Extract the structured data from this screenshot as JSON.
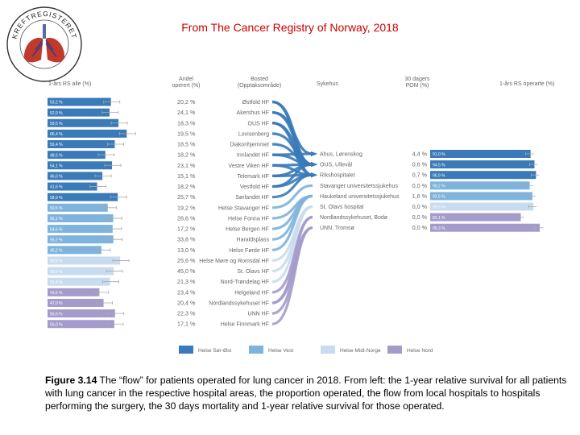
{
  "title": "From The Cancer Registry of Norway, 2018",
  "logo": {
    "text": "KREFTREGISTERET",
    "icon": "lungs-seal-icon"
  },
  "caption": {
    "label": "Figure 3.14",
    "text": "The “flow” for patients operated for lung cancer in 2018. From left: the 1-year relative survival for all patients with lung cancer in the respective hospital areas, the proportion operated, the flow from local hospitals to hospitals performing the surgery, the 30 days mortality and 1-year relative survival for those operated."
  },
  "colors": {
    "Helse Sør-Øst": "#3a7ab8",
    "Helse Vest": "#7db3dc",
    "Helse Midt-Norge": "#c9dcef",
    "Helse Nord": "#a49bcb"
  },
  "chart_data": {
    "type": "flow",
    "headers": {
      "survival_all": "1-års RS alle (%)",
      "andel": "Andel\noperert (%)",
      "bosted": "Bosted\n(Opptaksområde)",
      "sykehus": "Sykehus",
      "pom": "30 dagers\nPOM (%)",
      "survival_operated": "1-års RS operarte (%)"
    },
    "survival_axis": [
      0,
      100
    ],
    "areas": [
      {
        "name": "Østfold HF",
        "rs": 53.2,
        "rs_label": "53,2 %",
        "andel": "20,2 %",
        "region": "Helse Sør-Øst",
        "to": [
          1,
          2
        ]
      },
      {
        "name": "Akershus HF",
        "rs": 52.0,
        "rs_label": "52,0 %",
        "andel": "24,1 %",
        "region": "Helse Sør-Øst",
        "to": [
          0,
          1
        ]
      },
      {
        "name": "OUS HF",
        "rs": 59.5,
        "rs_label": "59,5 %",
        "andel": "18,3 %",
        "region": "Helse Sør-Øst",
        "to": [
          1,
          2
        ]
      },
      {
        "name": "Lovisenberg",
        "rs": 66.4,
        "rs_label": "66,4 %",
        "andel": "19,5 %",
        "region": "Helse Sør-Øst",
        "to": [
          1
        ]
      },
      {
        "name": "Diakonhjemmet",
        "rs": 56.4,
        "rs_label": "56,4 %",
        "andel": "18,5 %",
        "region": "Helse Sør-Øst",
        "to": [
          1
        ]
      },
      {
        "name": "Innlandet HF",
        "rs": 48.5,
        "rs_label": "48,5 %",
        "andel": "18,2 %",
        "region": "Helse Sør-Øst",
        "to": [
          0,
          1
        ]
      },
      {
        "name": "Vestre Viken HF",
        "rs": 54.1,
        "rs_label": "54,1 %",
        "andel": "23,1 %",
        "region": "Helse Sør-Øst",
        "to": [
          1,
          2
        ]
      },
      {
        "name": "Telemark HF",
        "rs": 46.0,
        "rs_label": "46,0 %",
        "andel": "15,1 %",
        "region": "Helse Sør-Øst",
        "to": [
          1,
          2
        ]
      },
      {
        "name": "Vestfold HF",
        "rs": 41.6,
        "rs_label": "41,6 %",
        "andel": "18,2 %",
        "region": "Helse Sør-Øst",
        "to": [
          1,
          2
        ]
      },
      {
        "name": "Sørlandet HF",
        "rs": 58.9,
        "rs_label": "58,9 %",
        "andel": "25,7 %",
        "region": "Helse Sør-Øst",
        "to": [
          2
        ]
      },
      {
        "name": "Helse Stavanger HF",
        "rs": 50.5,
        "rs_label": "50,5 %",
        "andel": "19,2 %",
        "region": "Helse Vest",
        "to": [
          3
        ]
      },
      {
        "name": "Helse Fonna HF",
        "rs": 55.1,
        "rs_label": "55,1 %",
        "andel": "28,6 %",
        "region": "Helse Vest",
        "to": [
          4
        ]
      },
      {
        "name": "Helse Bergen HF",
        "rs": 54.6,
        "rs_label": "54,6 %",
        "andel": "17,2 %",
        "region": "Helse Vest",
        "to": [
          4
        ]
      },
      {
        "name": "Haraldsplass",
        "rs": 55.2,
        "rs_label": "55,2 %",
        "andel": "33,8 %",
        "region": "Helse Vest",
        "to": [
          4
        ]
      },
      {
        "name": "Helse Førde HF",
        "rs": 45.2,
        "rs_label": "45,2 %",
        "andel": "13,0 %",
        "region": "Helse Vest",
        "to": [
          4
        ]
      },
      {
        "name": "Helse Møre og Romsdal HF",
        "rs": 60.9,
        "rs_label": "60,9 %",
        "andel": "25,6 %",
        "region": "Helse Midt-Norge",
        "to": [
          5
        ]
      },
      {
        "name": "St. Olavs HF",
        "rs": 55.5,
        "rs_label": "55,5 %",
        "andel": "45,0 %",
        "region": "Helse Midt-Norge",
        "to": [
          5
        ]
      },
      {
        "name": "Nord-Trøndelag HF",
        "rs": 52.4,
        "rs_label": "52,4 %",
        "andel": "21,3 %",
        "region": "Helse Midt-Norge",
        "to": [
          5
        ]
      },
      {
        "name": "Helgeland HF",
        "rs": 43.5,
        "rs_label": "43,5 %",
        "andel": "23,4 %",
        "region": "Helse Nord",
        "to": [
          6
        ]
      },
      {
        "name": "Nordlandssykehuset HF",
        "rs": 47.0,
        "rs_label": "47,0 %",
        "andel": "20,4 %",
        "region": "Helse Nord",
        "to": [
          6,
          7
        ]
      },
      {
        "name": "UNN HF",
        "rs": 56.6,
        "rs_label": "56,6 %",
        "andel": "22,3 %",
        "region": "Helse Nord",
        "to": [
          7
        ]
      },
      {
        "name": "Helse Finnmark HF",
        "rs": 56.0,
        "rs_label": "56,0 %",
        "andel": "17,1 %",
        "region": "Helse Nord",
        "to": [
          7
        ]
      }
    ],
    "hospitals": [
      {
        "name": "Ahus, Lørenskog",
        "pom": "4,4 %",
        "rs": 91.0,
        "rs_label": "91,0 %",
        "region": "Helse Sør-Øst"
      },
      {
        "name": "OUS, Ullevål",
        "pom": "0,6 %",
        "rs": 94.5,
        "rs_label": "94,5 %",
        "region": "Helse Sør-Øst"
      },
      {
        "name": "Rikshospitalet",
        "pom": "0,7 %",
        "rs": 95.9,
        "rs_label": "95,9 %",
        "region": "Helse Sør-Øst"
      },
      {
        "name": "Stavanger universitetssjukehus",
        "pom": "0,0 %",
        "rs": 90.2,
        "rs_label": "90,2 %",
        "region": "Helse Vest"
      },
      {
        "name": "Haukeland universitetssjukehus",
        "pom": "1,6 %",
        "rs": 92.6,
        "rs_label": "92,6 %",
        "region": "Helse Vest"
      },
      {
        "name": "St. Olavs hospital",
        "pom": "0,0 %",
        "rs": 93.6,
        "rs_label": "93,6 %",
        "region": "Helse Midt-Norge"
      },
      {
        "name": "Nordlandssykehuset, Bodø",
        "pom": "0,0 %",
        "rs": 82.1,
        "rs_label": "82,1 %",
        "region": "Helse Nord"
      },
      {
        "name": "UNN, Tromsø",
        "pom": "0,0 %",
        "rs": 99.3,
        "rs_label": "99,3 %",
        "region": "Helse Nord"
      }
    ],
    "legend": [
      "Helse Sør-Øst",
      "Helse Vest",
      "Helse Midt-Norge",
      "Helse Nord"
    ]
  }
}
